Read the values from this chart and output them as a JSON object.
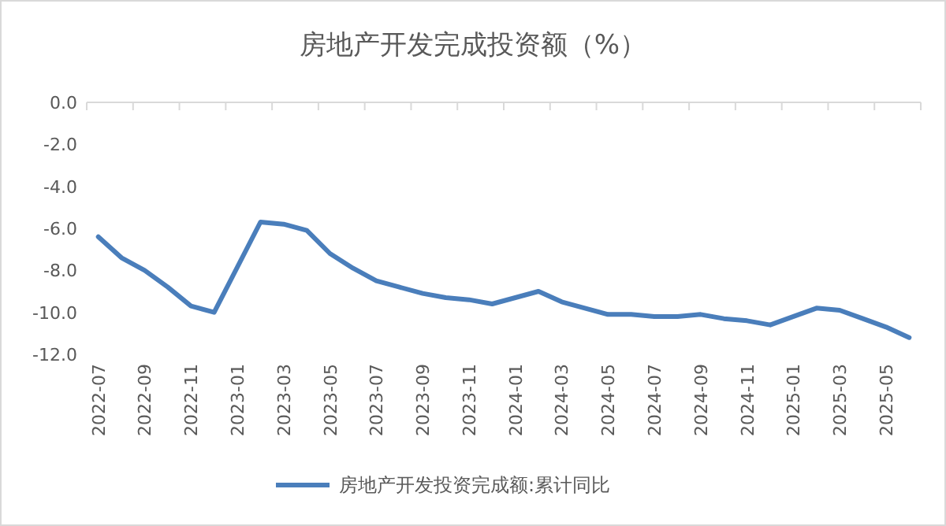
{
  "chart_data": {
    "type": "line",
    "title": "房地产开发完成投资额（%）",
    "categories": [
      "2022-07",
      null,
      "2022-09",
      null,
      "2022-11",
      null,
      "2023-01",
      null,
      "2023-03",
      null,
      "2023-05",
      null,
      "2023-07",
      null,
      "2023-09",
      null,
      "2023-11",
      null,
      "2024-01",
      null,
      "2024-03",
      null,
      "2024-05",
      null,
      "2024-07",
      null,
      "2024-09",
      null,
      "2024-11",
      null,
      "2025-01",
      null,
      "2025-03",
      null,
      "2025-05",
      null
    ],
    "series": [
      {
        "name": "房地产开发投资完成额:累计同比",
        "color": "#4a7ebb",
        "values": [
          -6.4,
          -7.4,
          -8.0,
          -8.8,
          -9.7,
          -10.0,
          null,
          -5.7,
          -5.8,
          -6.1,
          -7.2,
          -7.9,
          -8.5,
          -8.8,
          -9.1,
          -9.3,
          -9.4,
          -9.6,
          null,
          -9.0,
          -9.5,
          -9.8,
          -10.1,
          -10.1,
          -10.2,
          -10.2,
          -10.1,
          -10.3,
          -10.4,
          -10.6,
          null,
          -9.8,
          -9.9,
          -10.3,
          -10.7,
          -11.2
        ]
      }
    ],
    "ylim": [
      -12,
      0
    ],
    "yticks": [
      {
        "value": 0,
        "label": "0.0"
      },
      {
        "value": -2,
        "label": "-2.0"
      },
      {
        "value": -4,
        "label": "-4.0"
      },
      {
        "value": -6,
        "label": "-6.0"
      },
      {
        "value": -8,
        "label": "-8.0"
      },
      {
        "value": -10,
        "label": "-10.0"
      },
      {
        "value": -12,
        "label": "-12.0"
      }
    ],
    "grid": false,
    "legend": "bottom",
    "marker": "none",
    "line_style": "solid"
  }
}
